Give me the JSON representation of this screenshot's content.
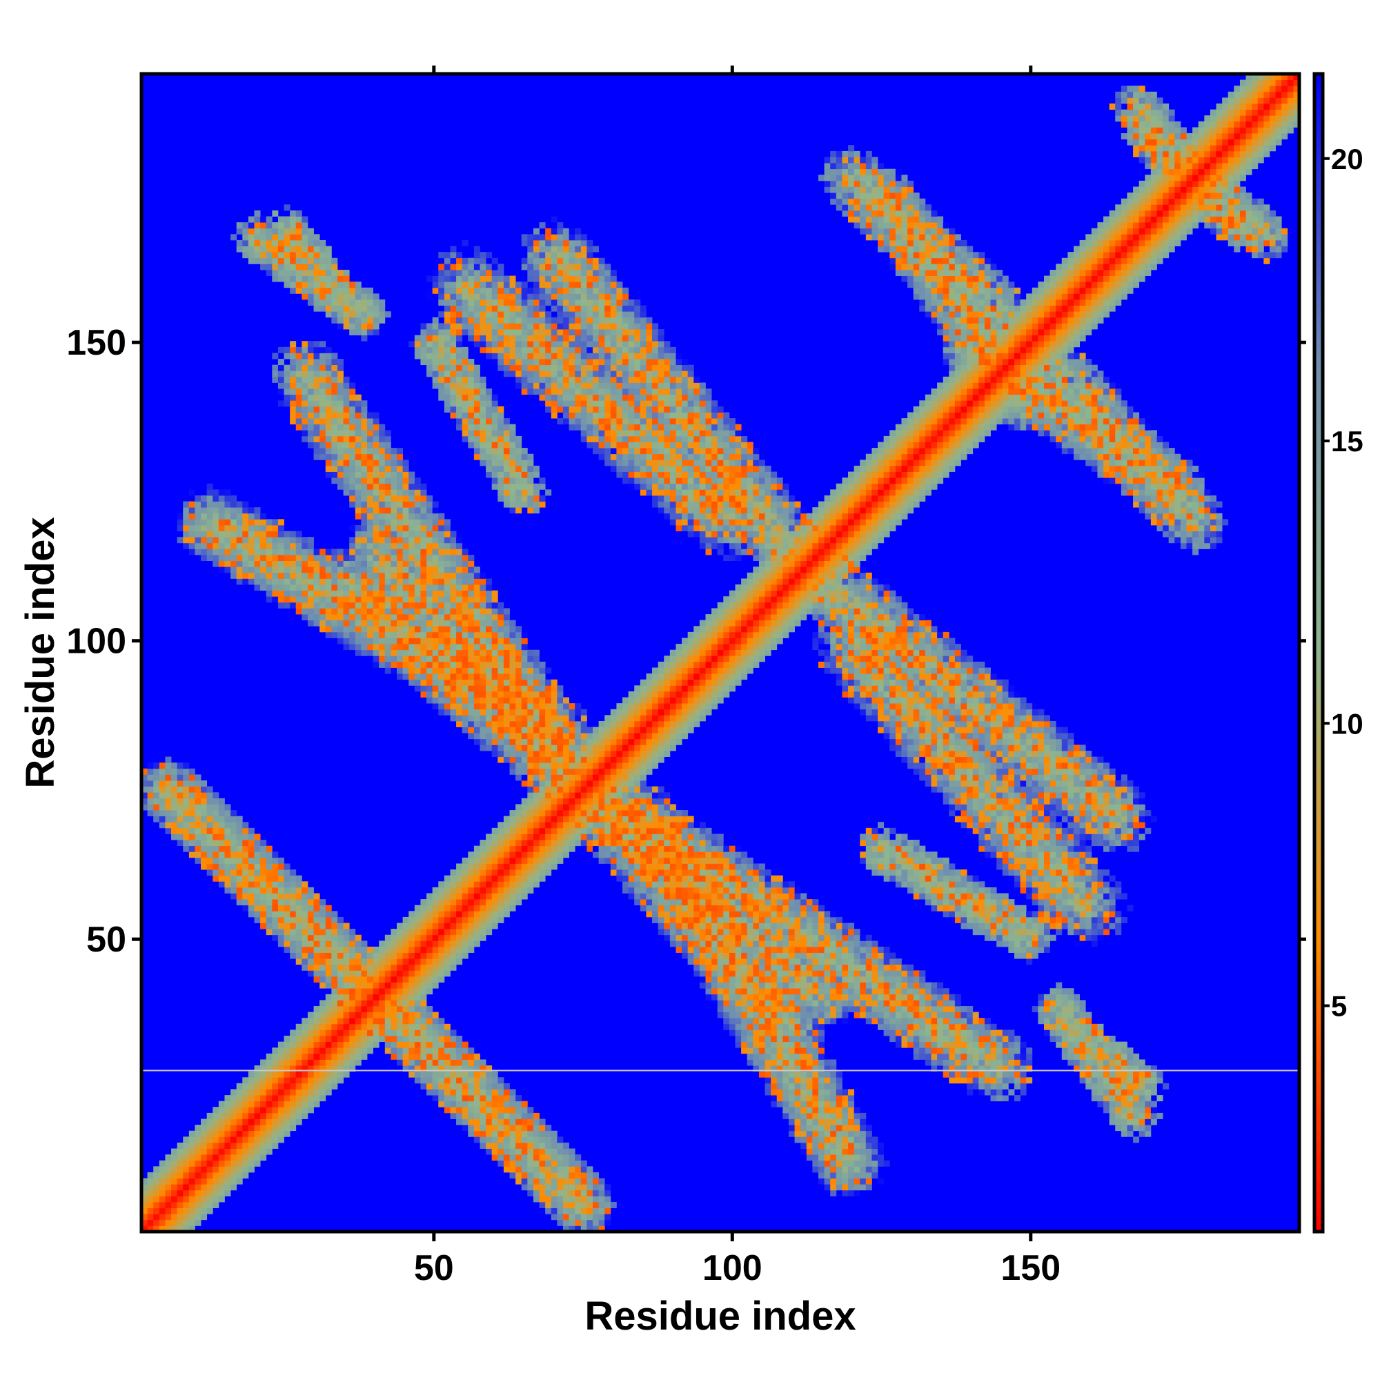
{
  "chart_data": {
    "type": "heatmap",
    "title": "",
    "xlabel": "Residue index",
    "ylabel": "Residue index",
    "n_residues": 195,
    "xlim": [
      1,
      195
    ],
    "ylim": [
      1,
      195
    ],
    "x_ticks": [
      50,
      100,
      150
    ],
    "x_tick_labels": [
      "50",
      "100",
      "150"
    ],
    "y_ticks": [
      50,
      100,
      150
    ],
    "y_tick_labels": [
      "50",
      "100",
      "150"
    ],
    "colorbar": {
      "range": [
        1,
        21.5
      ],
      "ticks": [
        5,
        10,
        15,
        20
      ],
      "tick_labels": [
        "5",
        "10",
        "15",
        "20"
      ],
      "colors": [
        "#ff0000",
        "#ff8c00",
        "#8fb58f",
        "#6f8fb0",
        "#0000ff"
      ]
    },
    "background_value": 21.5,
    "diagonal_band": {
      "half_width": 8,
      "value_on_diagonal": 1
    },
    "contact_bands": [
      {
        "x_range": [
          5,
          75
        ],
        "y_range": [
          75,
          5
        ],
        "width": 5
      },
      {
        "x_range": [
          12,
          70
        ],
        "y_range": [
          120,
          85
        ],
        "width": 6
      },
      {
        "x_range": [
          35,
          115
        ],
        "y_range": [
          110,
          40
        ],
        "width": 6
      },
      {
        "x_range": [
          55,
          100
        ],
        "y_range": [
          160,
          120
        ],
        "width": 7
      },
      {
        "x_range": [
          75,
          145
        ],
        "y_range": [
          75,
          28
        ],
        "width": 6
      },
      {
        "x_range": [
          115,
          165
        ],
        "y_range": [
          110,
          70
        ],
        "width": 6
      },
      {
        "x_range": [
          140,
          175
        ],
        "y_range": [
          150,
          125
        ],
        "width": 5
      },
      {
        "x_range": [
          120,
          145
        ],
        "y_range": [
          178,
          155
        ],
        "width": 5
      },
      {
        "x_range": [
          20,
          38
        ],
        "y_range": [
          168,
          155
        ],
        "width": 4
      },
      {
        "x_range": [
          157,
          170
        ],
        "y_range": [
          35,
          25
        ],
        "width": 3
      },
      {
        "x_range": [
          125,
          150
        ],
        "y_range": [
          65,
          50
        ],
        "width": 4
      },
      {
        "x_range": [
          170,
          190
        ],
        "y_range": [
          185,
          168
        ],
        "width": 4
      }
    ],
    "highlight_line": {
      "y_value": 28,
      "color": "#c8c8c8"
    }
  }
}
